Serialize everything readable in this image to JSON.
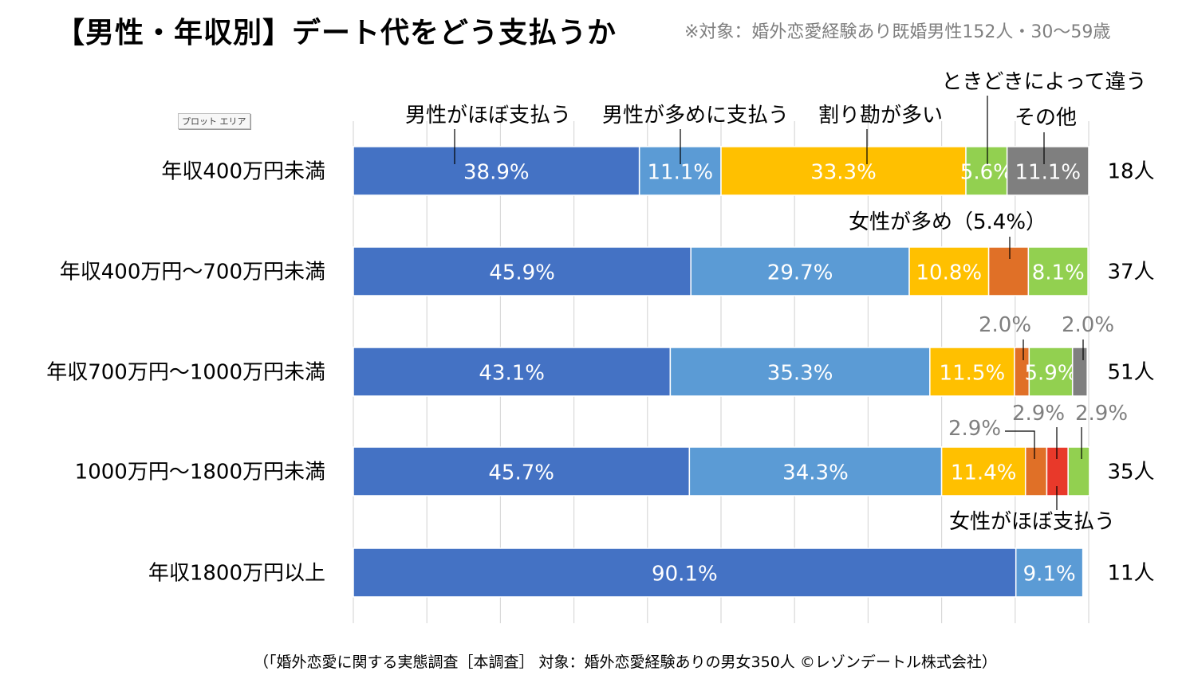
{
  "title": "【男性・年収別】デート代をどう支払うか",
  "subtitle": "※対象：婚外恋愛経験あり既婚男性152人・30～59歳",
  "plot_area_tag": "プロット エリア",
  "footnote": "（「婚外恋愛に関する実態調査［本調査］ 対象：婚外恋愛経験ありの男女350人 ©レゾンデートル株式会社）",
  "colors": {
    "male_mostly": "#4472c4",
    "male_more": "#5b9bd5",
    "split": "#ffc000",
    "female_more": "#e07027",
    "female_mostly": "#e8392a",
    "depends": "#92d050",
    "other": "#7f7f7f",
    "grid": "#d9d9d9",
    "outside_label": "#7f7f7f"
  },
  "chart_data": {
    "type": "bar",
    "orientation": "horizontal",
    "stacked": true,
    "xlim": [
      0,
      100
    ],
    "grid": true,
    "categories": [
      "年収400万円未満",
      "年収400万円～700万円未満",
      "年収700万円～1000万円未満",
      "1000万円～1800万円未満",
      "年収1800万円以上"
    ],
    "counts": [
      "18人",
      "37人",
      "51人",
      "35人",
      "11人"
    ],
    "series": [
      {
        "key": "male_mostly",
        "name": "男性がほぼ支払う",
        "values": [
          38.9,
          45.9,
          43.1,
          45.7,
          90.1
        ]
      },
      {
        "key": "male_more",
        "name": "男性が多めに支払う",
        "values": [
          11.1,
          29.7,
          35.3,
          34.3,
          9.1
        ]
      },
      {
        "key": "split",
        "name": "割り勘が多い",
        "values": [
          33.3,
          10.8,
          11.5,
          11.4,
          0
        ]
      },
      {
        "key": "female_more",
        "name": "女性が多め",
        "values": [
          0,
          5.4,
          2.0,
          2.9,
          0
        ]
      },
      {
        "key": "female_mostly",
        "name": "女性がほぼ支払う",
        "values": [
          0,
          0,
          0,
          2.9,
          0
        ]
      },
      {
        "key": "depends",
        "name": "ときどきによって違う",
        "values": [
          5.6,
          8.1,
          5.9,
          2.9,
          0
        ]
      },
      {
        "key": "other",
        "name": "その他",
        "values": [
          11.1,
          0,
          2.0,
          0,
          0
        ]
      }
    ],
    "segment_labels": [
      [
        "38.9%",
        "11.1%",
        "33.3%",
        "",
        "",
        "5.6%",
        "11.1%"
      ],
      [
        "45.9%",
        "29.7%",
        "10.8%",
        "",
        "",
        "8.1%",
        ""
      ],
      [
        "43.1%",
        "35.3%",
        "11.5%",
        "",
        "",
        "5.9%",
        ""
      ],
      [
        "45.7%",
        "34.3%",
        "11.4%",
        "",
        "",
        "",
        ""
      ],
      [
        "90.1%",
        "9.1%",
        "",
        "",
        "",
        "",
        ""
      ]
    ],
    "callouts": [
      {
        "text": "男性がほぼ支払う",
        "row": 0,
        "series": 0
      },
      {
        "text": "男性が多めに支払う",
        "row": 0,
        "series": 1
      },
      {
        "text": "割り勘が多い",
        "row": 0,
        "series": 2
      },
      {
        "text": "ときどきによって違う",
        "row": 0,
        "series": 5
      },
      {
        "text": "その他",
        "row": 0,
        "series": 6
      },
      {
        "text": "女性が多め（5.4%）",
        "row": 1,
        "series": 3
      },
      {
        "text": "2.0%",
        "row": 2,
        "series": 3
      },
      {
        "text": "2.0%",
        "row": 2,
        "series": 6
      },
      {
        "text": "2.9%",
        "row": 3,
        "series": 3
      },
      {
        "text": "2.9%",
        "row": 3,
        "series": 4
      },
      {
        "text": "2.9%",
        "row": 3,
        "series": 5
      },
      {
        "text": "女性がほぼ支払う",
        "row": 3,
        "series": 4
      }
    ]
  }
}
